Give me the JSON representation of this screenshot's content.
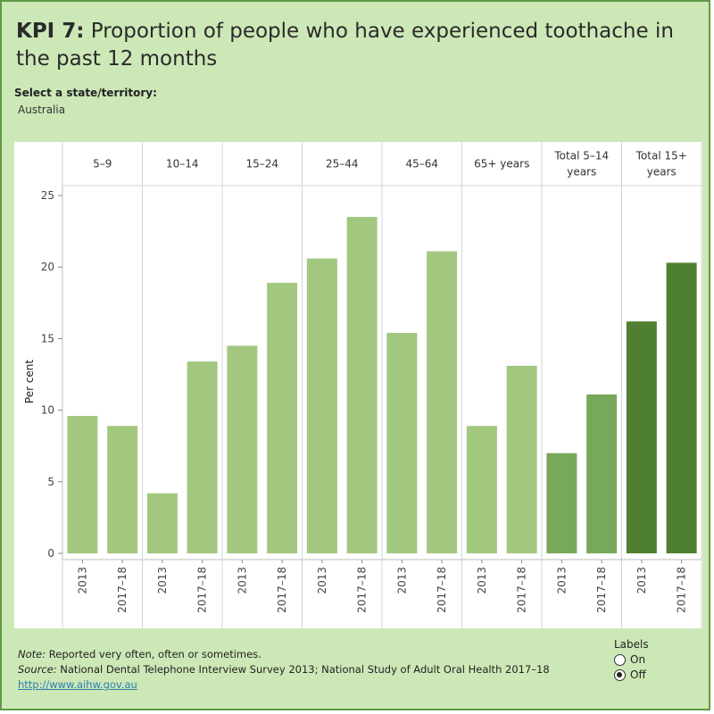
{
  "title": {
    "kpi": "KPI 7:",
    "text": " Proportion of people who have experienced toothache in the past 12 months"
  },
  "filter": {
    "label": "Select a state/territory:",
    "value": "Australia"
  },
  "chart_data": {
    "type": "bar",
    "ylabel": "Per cent",
    "ylim": [
      0,
      25
    ],
    "yticks": [
      0,
      5,
      10,
      15,
      20,
      25
    ],
    "groups": [
      {
        "name": "5–9",
        "bars": [
          {
            "label": "2013",
            "value": 9.6
          },
          {
            "label": "2017–18",
            "value": 8.9
          }
        ]
      },
      {
        "name": "10–14",
        "bars": [
          {
            "label": "2013",
            "value": 4.2
          },
          {
            "label": "2017–18",
            "value": 13.4
          }
        ]
      },
      {
        "name": "15–24",
        "bars": [
          {
            "label": "2013",
            "value": 14.5
          },
          {
            "label": "2017–18",
            "value": 18.9
          }
        ]
      },
      {
        "name": "25–44",
        "bars": [
          {
            "label": "2013",
            "value": 20.6
          },
          {
            "label": "2017–18",
            "value": 23.5
          }
        ]
      },
      {
        "name": "45–64",
        "bars": [
          {
            "label": "2013",
            "value": 15.4
          },
          {
            "label": "2017–18",
            "value": 21.1
          }
        ]
      },
      {
        "name": "65+ years",
        "bars": [
          {
            "label": "2013",
            "value": 8.9
          },
          {
            "label": "2017–18",
            "value": 13.1
          }
        ]
      },
      {
        "name": "Total 5–14 years",
        "bars": [
          {
            "label": "2013",
            "value": 7.0
          },
          {
            "label": "2017–18",
            "value": 11.1
          }
        ]
      },
      {
        "name": "Total 15+ years",
        "bars": [
          {
            "label": "2013",
            "value": 16.2
          },
          {
            "label": "2017–18",
            "value": 20.3
          }
        ]
      }
    ],
    "group_header_lines": [
      [
        "5–9"
      ],
      [
        "10–14"
      ],
      [
        "15–24"
      ],
      [
        "25–44"
      ],
      [
        "45–64"
      ],
      [
        "65+ years"
      ],
      [
        "Total 5–14",
        "years"
      ],
      [
        "Total 15+",
        "years"
      ]
    ],
    "colors": [
      "#a2c880",
      "#a2c880",
      "#a2c880",
      "#a2c880",
      "#a2c880",
      "#a2c880",
      "#78a95a",
      "#4f7f30"
    ],
    "grid": false
  },
  "footer": {
    "note_label": "Note:",
    "note_text": " Reported very often, often or sometimes.",
    "source_label": "Source:",
    "source_text": " National Dental Telephone Interview Survey 2013; National Study of Adult Oral Health 2017–18",
    "link": "http://www.aihw.gov.au"
  },
  "labels_control": {
    "title": "Labels",
    "options": [
      "On",
      "Off"
    ],
    "selected": "Off"
  }
}
